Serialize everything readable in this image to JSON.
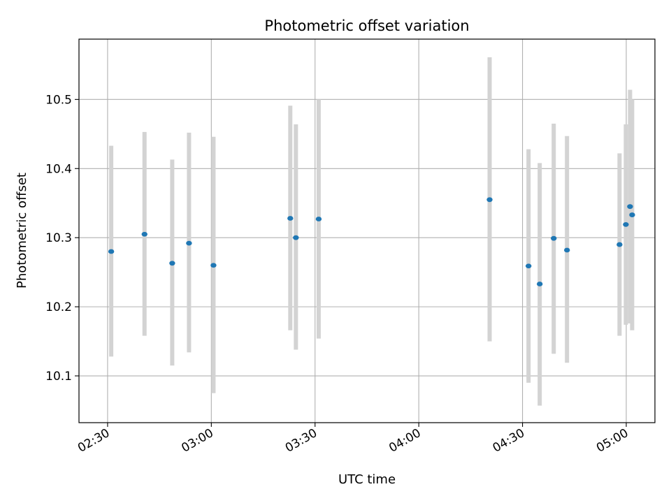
{
  "chart_data": {
    "type": "scatter",
    "title": "Photometric offset variation",
    "xlabel": "UTC time",
    "ylabel": "Photometric offset",
    "x_unit": "UTC time of day (hours)",
    "xlim": [
      2.3621,
      5.1382
    ],
    "ylim": [
      10.0323,
      10.5873
    ],
    "x_ticks": [
      {
        "value": 2.5,
        "label": "02:30"
      },
      {
        "value": 3.0,
        "label": "03:00"
      },
      {
        "value": 3.5,
        "label": "03:30"
      },
      {
        "value": 4.0,
        "label": "04:00"
      },
      {
        "value": 4.5,
        "label": "04:30"
      },
      {
        "value": 5.0,
        "label": "05:00"
      }
    ],
    "y_ticks": [
      {
        "value": 10.1,
        "label": "10.1"
      },
      {
        "value": 10.2,
        "label": "10.2"
      },
      {
        "value": 10.3,
        "label": "10.3"
      },
      {
        "value": 10.4,
        "label": "10.4"
      },
      {
        "value": 10.5,
        "label": "10.5"
      }
    ],
    "grid": true,
    "point_color": "#1f77b4",
    "errorbar_color": "#d3d3d3",
    "points": [
      {
        "x": 2.5175,
        "y": 10.28,
        "ylow": 10.128,
        "yhigh": 10.433
      },
      {
        "x": 2.678,
        "y": 10.305,
        "ylow": 10.158,
        "yhigh": 10.453
      },
      {
        "x": 2.8115,
        "y": 10.263,
        "ylow": 10.115,
        "yhigh": 10.413
      },
      {
        "x": 2.8924,
        "y": 10.292,
        "ylow": 10.134,
        "yhigh": 10.452
      },
      {
        "x": 3.0104,
        "y": 10.26,
        "ylow": 10.075,
        "yhigh": 10.446
      },
      {
        "x": 3.3806,
        "y": 10.328,
        "ylow": 10.166,
        "yhigh": 10.491
      },
      {
        "x": 3.4076,
        "y": 10.3,
        "ylow": 10.138,
        "yhigh": 10.464
      },
      {
        "x": 3.5175,
        "y": 10.327,
        "ylow": 10.154,
        "yhigh": 10.5
      },
      {
        "x": 4.3414,
        "y": 10.355,
        "ylow": 10.15,
        "yhigh": 10.561
      },
      {
        "x": 4.529,
        "y": 10.259,
        "ylow": 10.09,
        "yhigh": 10.428
      },
      {
        "x": 4.5829,
        "y": 10.233,
        "ylow": 10.057,
        "yhigh": 10.408
      },
      {
        "x": 4.6504,
        "y": 10.299,
        "ylow": 10.132,
        "yhigh": 10.465
      },
      {
        "x": 4.7144,
        "y": 10.282,
        "ylow": 10.119,
        "yhigh": 10.447
      },
      {
        "x": 4.9676,
        "y": 10.29,
        "ylow": 10.158,
        "yhigh": 10.422
      },
      {
        "x": 4.998,
        "y": 10.319,
        "ylow": 10.174,
        "yhigh": 10.464
      },
      {
        "x": 5.0183,
        "y": 10.345,
        "ylow": 10.176,
        "yhigh": 10.514
      },
      {
        "x": 5.0284,
        "y": 10.333,
        "ylow": 10.166,
        "yhigh": 10.5
      }
    ]
  }
}
